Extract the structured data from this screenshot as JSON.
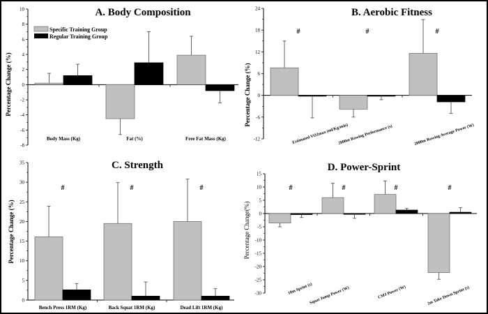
{
  "colors": {
    "specific": "#c0c0c0",
    "regular": "#000000",
    "error": "#555555"
  },
  "chart_data": [
    {
      "id": "A",
      "type": "bar",
      "title": "A.  Body Composition",
      "xlabel": "",
      "ylabel": "Percentage Change (%)",
      "ylim": [
        -8,
        10
      ],
      "yticks": [
        "10",
        "8",
        "6",
        "4",
        "2",
        "0",
        "-2",
        "-4",
        "-6",
        "-8"
      ],
      "ytick_values": [
        10,
        8,
        6,
        4,
        2,
        0,
        -2,
        -4,
        -6,
        -8
      ],
      "categories": [
        "Body Mass (Kg)",
        "Fat (%)",
        "Free Fat Mass (Kg)"
      ],
      "legend": [
        "Specific Training Group",
        "Regular Training Group"
      ],
      "legend_position": "top-left",
      "series": [
        {
          "name": "Specific Training Group",
          "values": [
            0.2,
            -4.5,
            3.9
          ],
          "errors": [
            1.3,
            2.1,
            2.5
          ]
        },
        {
          "name": "Regular Training Group",
          "values": [
            1.2,
            2.9,
            -0.8
          ],
          "errors": [
            1.5,
            4.1,
            1.6
          ]
        }
      ],
      "annotations": []
    },
    {
      "id": "B",
      "type": "bar",
      "title": "B. Aerobic Fitness",
      "ylabel": "Percentage Change (%)",
      "ylim": [
        -12,
        24
      ],
      "yticks": [
        "24",
        "18",
        "12",
        "6",
        "0",
        "-6",
        "-12"
      ],
      "ytick_values": [
        24,
        18,
        12,
        6,
        0,
        -6,
        -12
      ],
      "categories": [
        "Estimated VO2max (ml/Kg/min)",
        "2000m Rowing Performance (s)",
        "2000m Rowing Average Power (W)"
      ],
      "series": [
        {
          "name": "Specific Training Group",
          "values": [
            7.6,
            -3.8,
            11.6
          ],
          "errors": [
            7.4,
            2.2,
            9.3
          ]
        },
        {
          "name": "Regular Training Group",
          "values": [
            -0.1,
            -0.1,
            -1.8
          ],
          "errors": [
            6.1,
            1.1,
            3.2
          ]
        }
      ],
      "annotations": [
        "#",
        "#",
        "#"
      ]
    },
    {
      "id": "C",
      "type": "bar",
      "title": "C. Strength",
      "ylabel": "Percentage Change (%)",
      "ylim": [
        0,
        35
      ],
      "yticks": [
        "35",
        "30",
        "25",
        "20",
        "15",
        "10",
        "5",
        "0"
      ],
      "ytick_values": [
        35,
        30,
        25,
        20,
        15,
        10,
        5,
        0
      ],
      "categories": [
        "Bench Press 1RM (Kg)",
        "Back Squat 1RM (Kg)",
        "Dead Lift 1RM (Kg)"
      ],
      "series": [
        {
          "name": "Specific Training Group",
          "values": [
            16.1,
            19.5,
            20.0
          ],
          "errors": [
            7.8,
            10.4,
            10.8
          ]
        },
        {
          "name": "Regular Training Group",
          "values": [
            2.6,
            1.0,
            1.0
          ],
          "errors": [
            1.6,
            3.6,
            1.9
          ]
        }
      ],
      "annotations": [
        "#",
        "#",
        "#"
      ]
    },
    {
      "id": "D",
      "type": "bar",
      "title": "D. Power-Sprint",
      "ylabel": "Percentage Change(%)",
      "ylim": [
        -30,
        15
      ],
      "yticks": [
        "15",
        "10",
        "5",
        "0",
        "-5",
        "-10",
        "-15",
        "-20",
        "-25",
        "-30"
      ],
      "ytick_values": [
        15,
        10,
        5,
        0,
        -5,
        -10,
        -15,
        -20,
        -25,
        -30
      ],
      "categories": [
        "10m Sprint (s)",
        "Squat Jump Power (W)",
        "CMJ Power (W)",
        "2m Take Down Sprint (s)"
      ],
      "series": [
        {
          "name": "Specific Training Group",
          "values": [
            -3.6,
            6.0,
            7.2,
            -22.3
          ],
          "errors": [
            1.4,
            5.4,
            5.1,
            2.5
          ]
        },
        {
          "name": "Regular Training Group",
          "values": [
            -0.4,
            -0.2,
            1.3,
            0.5
          ],
          "errors": [
            1.1,
            1.6,
            0.6,
            1.7
          ]
        }
      ],
      "annotations": [
        "#",
        "#",
        "#",
        "#"
      ]
    }
  ]
}
